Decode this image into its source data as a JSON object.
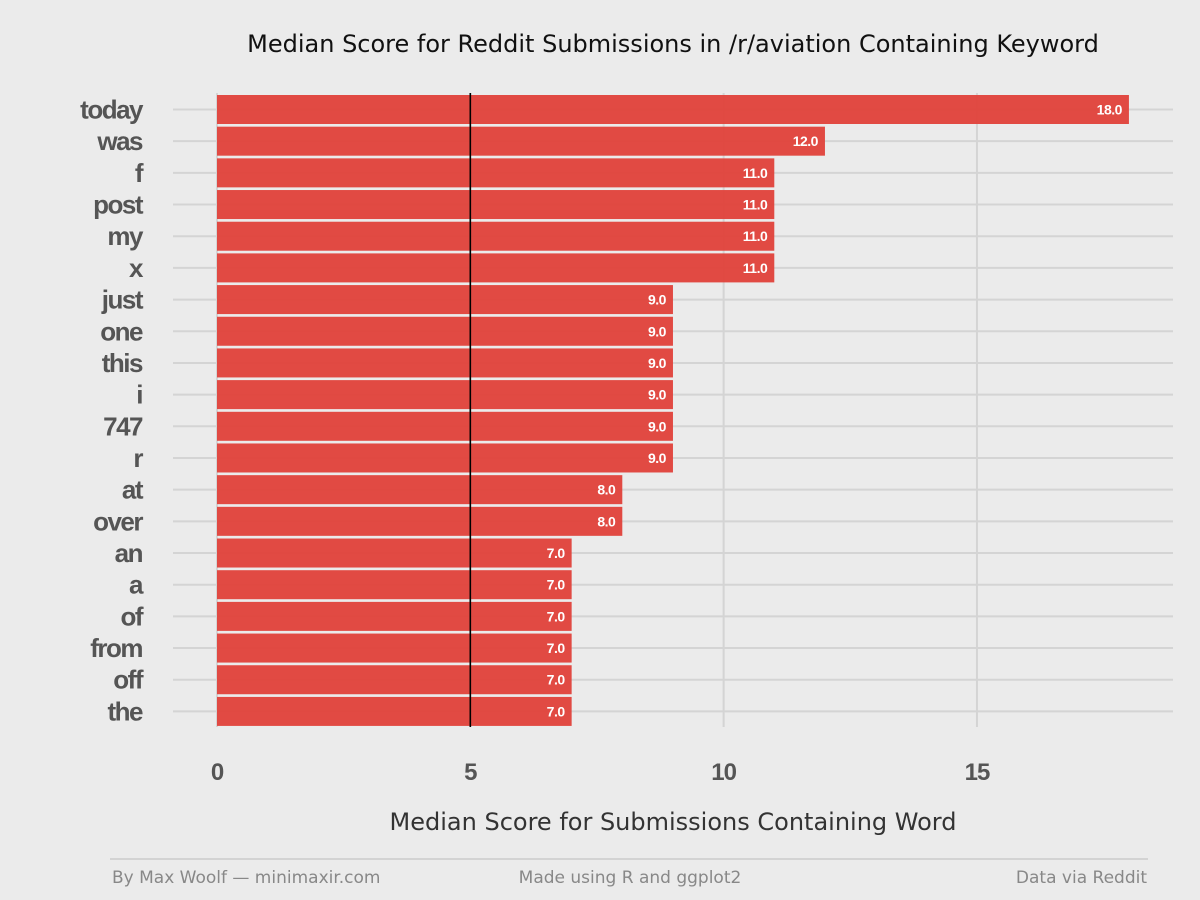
{
  "chart_data": {
    "type": "bar",
    "orientation": "horizontal",
    "title": "Median Score for Reddit Submissions in /r/aviation Containing Keyword",
    "xlabel": "Median Score for Submissions Containing Word",
    "ylabel": "",
    "categories": [
      "today",
      "was",
      "f",
      "post",
      "my",
      "x",
      "just",
      "one",
      "this",
      "i",
      "747",
      "r",
      "at",
      "over",
      "an",
      "a",
      "of",
      "from",
      "off",
      "the"
    ],
    "values": [
      18,
      12,
      11,
      11,
      11,
      11,
      9,
      9,
      9,
      9,
      9,
      9,
      8,
      8,
      7,
      7,
      7,
      7,
      7,
      7
    ],
    "value_labels": [
      "18.0",
      "12.0",
      "11.0",
      "11.0",
      "11.0",
      "11.0",
      "9.0",
      "9.0",
      "9.0",
      "9.0",
      "9.0",
      "9.0",
      "8.0",
      "8.0",
      "7.0",
      "7.0",
      "7.0",
      "7.0",
      "7.0",
      "7.0"
    ],
    "xlim": [
      0,
      18.85
    ],
    "xticks": [
      0,
      5,
      10,
      15
    ],
    "xtick_labels": [
      "0",
      "5",
      "10",
      "15"
    ],
    "reference_line": 5,
    "grid": true,
    "colors": {
      "bar": "#e0463f",
      "background": "#ebebeb",
      "grid": "#d4d4d4",
      "reference_line": "#000000"
    }
  },
  "footer": {
    "left": "By Max Woolf — minimaxir.com",
    "center": "Made using R and ggplot2",
    "right": "Data via Reddit"
  }
}
